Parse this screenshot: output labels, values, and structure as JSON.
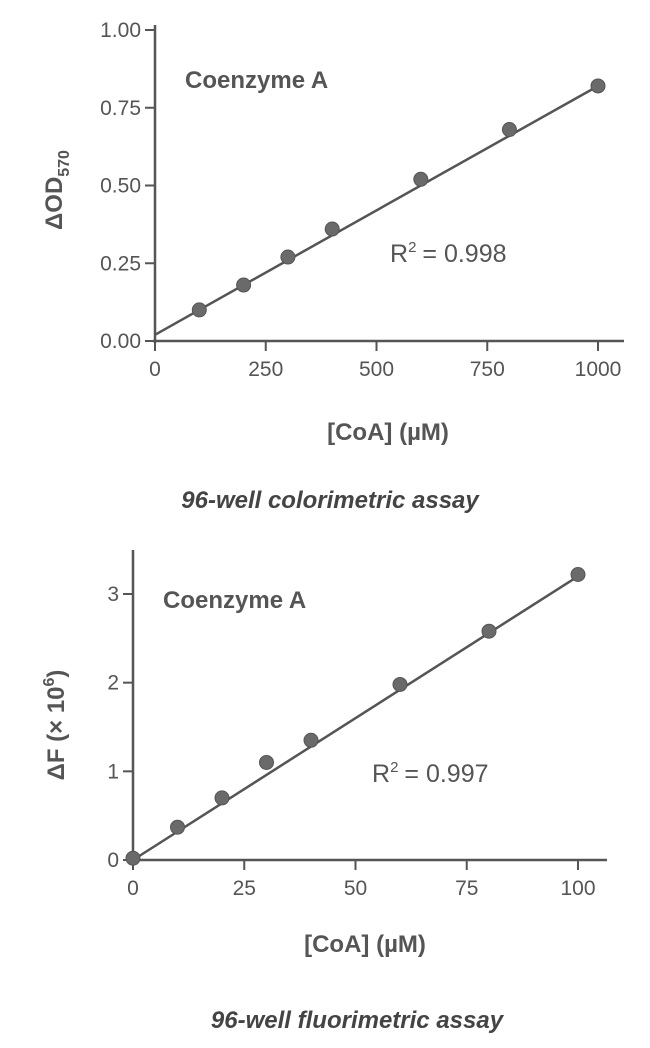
{
  "chart_data": [
    {
      "type": "scatter",
      "title": "",
      "annotation": "Coenzyme A",
      "r2_label": "R",
      "r2_sup": "2",
      "r2_value": "= 0.998",
      "caption": "96-well colorimetric assay",
      "xlabel": "[CoA] (µM)",
      "ylabel": "ΔOD",
      "ylabel_sub": "570",
      "xlim": [
        0,
        1000
      ],
      "ylim": [
        0,
        1.0
      ],
      "xticks": [
        "0",
        "250",
        "500",
        "750",
        "1000"
      ],
      "yticks": [
        "0.00",
        "0.25",
        "0.50",
        "0.75",
        "1.00"
      ],
      "x": [
        100,
        200,
        300,
        400,
        600,
        800,
        1000
      ],
      "y": [
        0.1,
        0.18,
        0.27,
        0.36,
        0.52,
        0.68,
        0.82
      ],
      "fit": {
        "x": [
          0,
          1000
        ],
        "y": [
          0.02,
          0.82
        ]
      },
      "color": "#555555"
    },
    {
      "type": "scatter",
      "title": "",
      "annotation": "Coenzyme A",
      "r2_label": "R",
      "r2_sup": "2",
      "r2_value": "= 0.997",
      "caption": "96-well fluorimetric assay",
      "xlabel": "[CoA] (µM)",
      "ylabel": "ΔF (× 10",
      "ylabel_sup": "6",
      "ylabel_end": ")",
      "xlim": [
        0,
        100
      ],
      "ylim": [
        0,
        3
      ],
      "xticks": [
        "0",
        "25",
        "50",
        "75",
        "100"
      ],
      "yticks": [
        "0",
        "1",
        "2",
        "3"
      ],
      "x": [
        0,
        10,
        20,
        30,
        40,
        60,
        80,
        100
      ],
      "y": [
        0.02,
        0.37,
        0.7,
        1.1,
        1.35,
        1.98,
        2.58,
        3.22
      ],
      "fit": {
        "x": [
          0,
          100
        ],
        "y": [
          0.0,
          3.2
        ]
      },
      "color": "#555555"
    }
  ]
}
